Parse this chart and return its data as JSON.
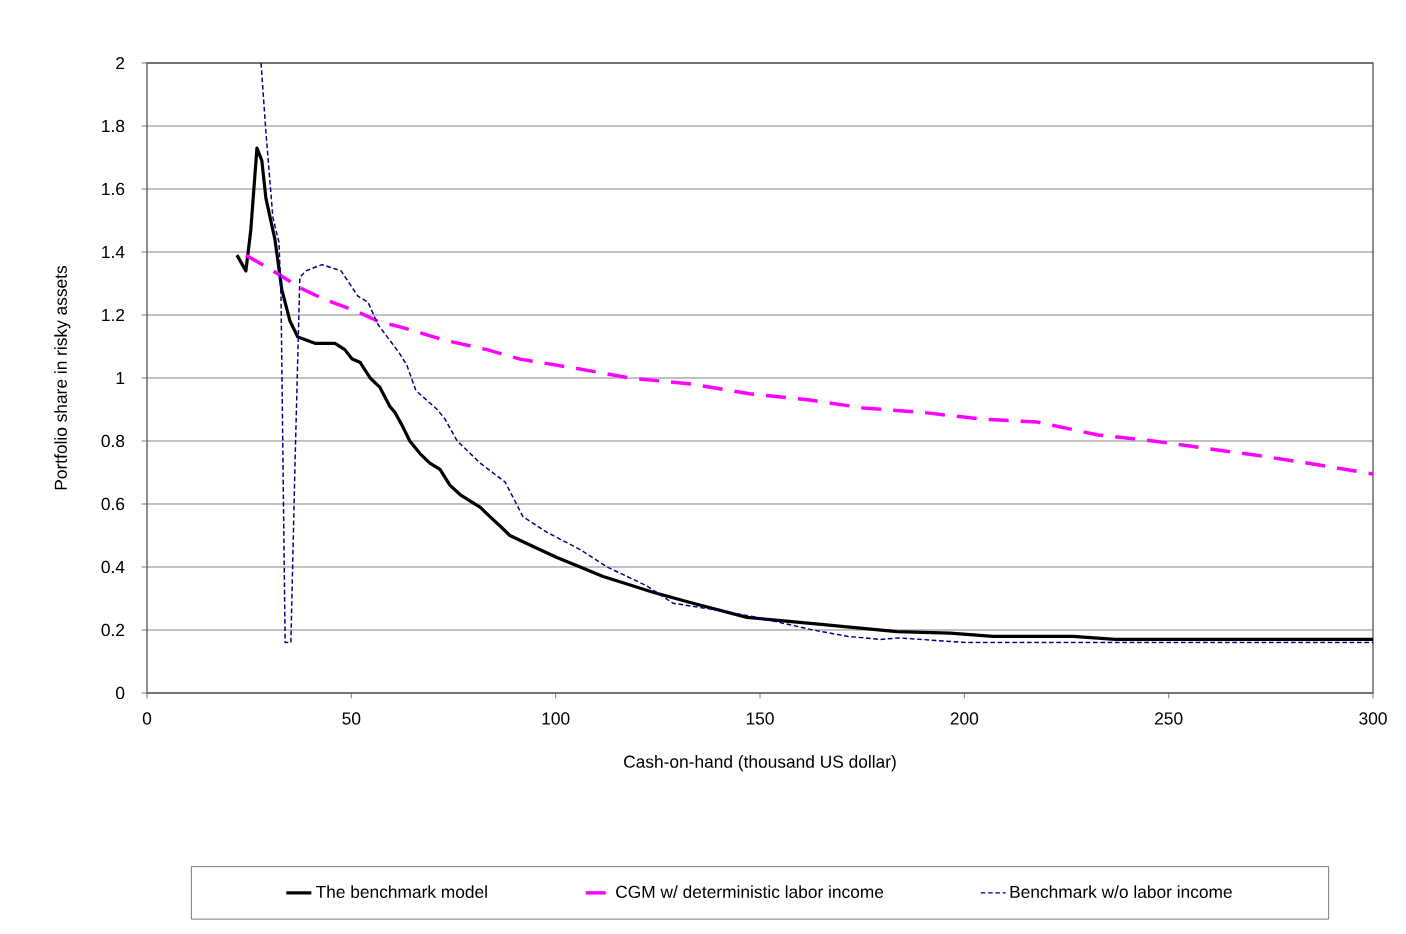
{
  "chart_data": {
    "type": "line",
    "xlabel": "Cash-on-hand (thousand US dollar)",
    "ylabel": "Portfolio share in risky assets",
    "xlim": [
      0,
      300
    ],
    "ylim": [
      0,
      2
    ],
    "xticks": [
      0,
      50,
      100,
      150,
      200,
      250,
      300
    ],
    "yticks": [
      0,
      0.2,
      0.4,
      0.6,
      0.8,
      1,
      1.2,
      1.4,
      1.6,
      1.8,
      2
    ],
    "grid": "y",
    "legend": "bottom",
    "series": [
      {
        "name": "The benchmark model",
        "color": "#000000",
        "line_style": "solid",
        "x": [
          22,
          24.2,
          25.4,
          26.9,
          28.1,
          29.1,
          31.3,
          33,
          35,
          36.9,
          41.1,
          46,
          48.4,
          50.2,
          52.1,
          54.6,
          57,
          59.4,
          60.7,
          62.4,
          64.3,
          66.8,
          69.2,
          71.7,
          74.1,
          76.6,
          79,
          81.5,
          83.9,
          86.4,
          88.8,
          92,
          100.3,
          106,
          111.6,
          116.5,
          123.8,
          133.6,
          146.8,
          163,
          183.5,
          196.5,
          207,
          226.6,
          237,
          300
        ],
        "values": [
          1.39,
          1.34,
          1.47,
          1.73,
          1.69,
          1.57,
          1.44,
          1.28,
          1.18,
          1.13,
          1.11,
          1.11,
          1.09,
          1.06,
          1.05,
          1,
          0.97,
          0.91,
          0.89,
          0.85,
          0.8,
          0.76,
          0.73,
          0.71,
          0.66,
          0.63,
          0.61,
          0.59,
          0.56,
          0.53,
          0.5,
          0.48,
          0.43,
          0.4,
          0.37,
          0.35,
          0.32,
          0.285,
          0.24,
          0.22,
          0.195,
          0.19,
          0.18,
          0.18,
          0.17,
          0.17
        ]
      },
      {
        "name": "CGM w/ deterministic labor income",
        "color": "#ff00ff",
        "line_style": "dashed",
        "x": [
          24.2,
          30.8,
          38.4,
          43.3,
          51.6,
          56.5,
          62.6,
          72.9,
          83.2,
          91.3,
          105.2,
          118.2,
          133.6,
          147.5,
          162.2,
          175.2,
          190.4,
          203.8,
          217.8,
          232.4,
          246.2,
          260.1,
          274,
          288.7,
          300
        ],
        "values": [
          1.39,
          1.34,
          1.28,
          1.25,
          1.21,
          1.18,
          1.16,
          1.12,
          1.09,
          1.06,
          1.03,
          1,
          0.98,
          0.95,
          0.93,
          0.905,
          0.89,
          0.87,
          0.86,
          0.82,
          0.8,
          0.775,
          0.75,
          0.72,
          0.695
        ]
      },
      {
        "name": "Benchmark w/o labor income",
        "color": "#000080",
        "line_style": "dotted",
        "x": [
          27.9,
          29.1,
          30.8,
          32.3,
          32.8,
          33.8,
          35.2,
          36.2,
          37.4,
          38.9,
          42.8,
          47.5,
          51.6,
          54.1,
          56.5,
          61.7,
          63.6,
          65.8,
          71,
          72.9,
          75.9,
          81.5,
          87.6,
          92,
          97.9,
          106,
          112.6,
          122.3,
          128.7,
          138.5,
          149.3,
          163,
          171.3,
          179.4,
          184,
          200.6,
          300
        ],
        "values": [
          2,
          1.78,
          1.51,
          1.43,
          1.25,
          0.16,
          0.16,
          0.72,
          1.32,
          1.34,
          1.36,
          1.34,
          1.26,
          1.24,
          1.17,
          1.08,
          1.04,
          0.96,
          0.9,
          0.87,
          0.8,
          0.73,
          0.67,
          0.56,
          0.51,
          0.455,
          0.4,
          0.34,
          0.285,
          0.265,
          0.24,
          0.2,
          0.18,
          0.17,
          0.175,
          0.16,
          0.16
        ]
      }
    ]
  }
}
